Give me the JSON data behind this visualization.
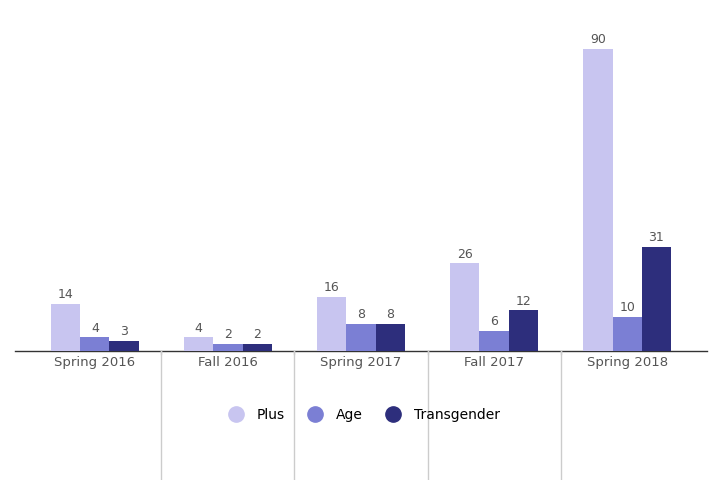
{
  "categories": [
    "Spring 2016",
    "Fall 2016",
    "Spring 2017",
    "Fall 2017",
    "Spring 2018"
  ],
  "plus": [
    14,
    4,
    16,
    26,
    90
  ],
  "age": [
    4,
    2,
    8,
    6,
    10
  ],
  "transgender": [
    3,
    2,
    8,
    12,
    31
  ],
  "plus_color": "#c8c5f0",
  "age_color": "#7b7fd4",
  "transgender_color": "#2d2e7c",
  "background_color": "#ffffff",
  "bar_width": 0.22,
  "ylim": [
    0,
    100
  ],
  "label_fontsize": 9,
  "axis_fontsize": 9.5,
  "legend_fontsize": 10,
  "tick_label_color": "#555555",
  "separator_color": "#cccccc",
  "bottom_spine_color": "#333333"
}
